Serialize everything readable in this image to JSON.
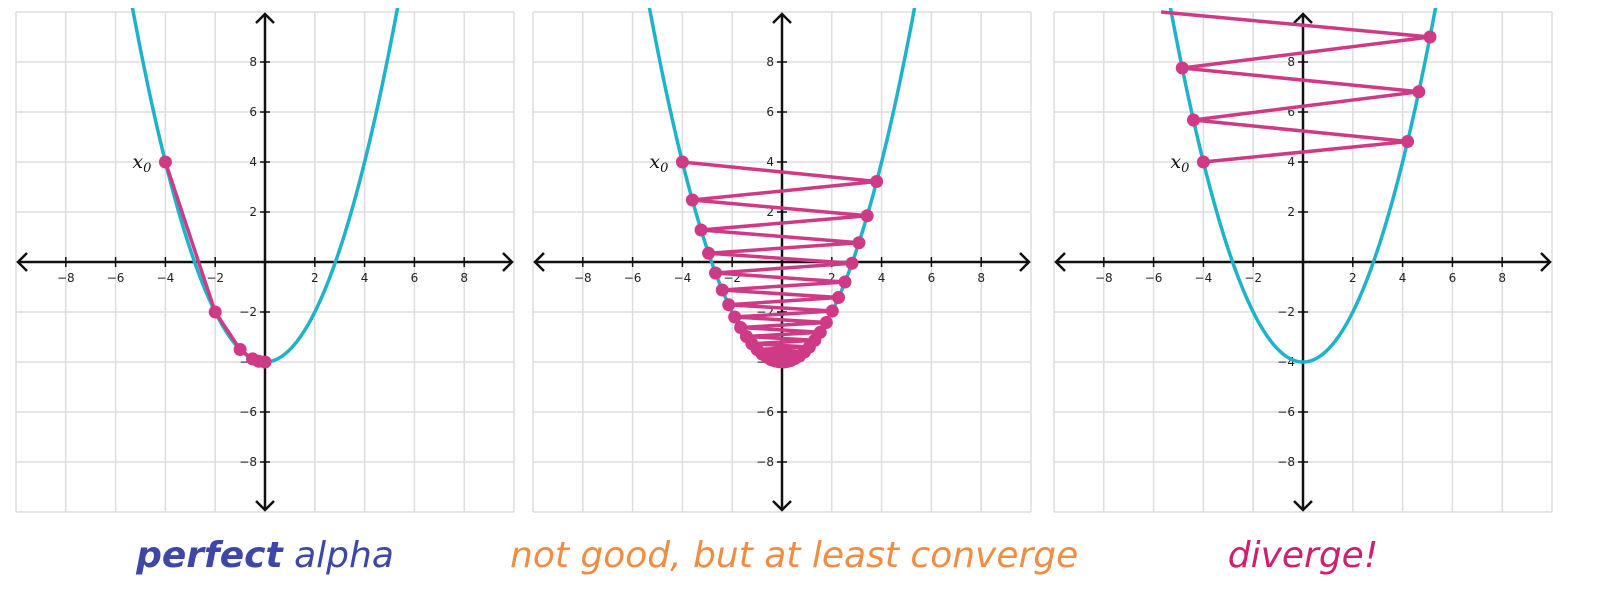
{
  "colors": {
    "curve": "#1fb3cb",
    "path": "#cf3a86",
    "grid": "#dddddd",
    "axis": "#111111"
  },
  "chart_data": [
    {
      "type": "line",
      "caption_bold": "perfect",
      "caption_rest": " alpha",
      "caption_color": "#3d47a8",
      "xlim": [
        -10,
        10
      ],
      "ylim": [
        -10,
        10
      ],
      "xticks": [
        -8,
        -6,
        -4,
        -2,
        2,
        4,
        6,
        8
      ],
      "yticks": [
        8,
        6,
        4,
        2,
        -2,
        -4,
        -6,
        -8
      ],
      "start_label": "x",
      "start_label_sub": "0",
      "curve": "y = x^2/2 - 4",
      "series": [
        {
          "x": [
            -4,
            -2,
            -1,
            -0.5,
            -0.25,
            0
          ],
          "y": [
            4,
            -2,
            -3.5,
            -3.875,
            -3.97,
            -4
          ]
        }
      ]
    },
    {
      "type": "line",
      "caption_bold": "",
      "caption_rest": "not good, but at least converge",
      "caption_color": "#f08d42",
      "xlim": [
        -10,
        10
      ],
      "ylim": [
        -10,
        10
      ],
      "xticks": [
        -8,
        -6,
        -4,
        -2,
        2,
        4,
        6,
        8
      ],
      "yticks": [
        8,
        6,
        4,
        2,
        -2,
        -4,
        -6,
        -8
      ],
      "start_label": "x",
      "start_label_sub": "0",
      "curve": "y = x^2/2 - 4",
      "series": [
        {
          "x": [
            -4,
            3.8,
            -3.6,
            3.42,
            -3.25,
            3.09,
            -2.95,
            2.81,
            -2.67,
            2.53,
            -2.4,
            2.27,
            -2.14,
            2.02,
            -1.9,
            1.78,
            -1.66,
            1.54,
            -1.43,
            1.32,
            -1.21,
            1.1,
            -1.0,
            0.9,
            -0.8,
            0.7,
            -0.61,
            0.52,
            -0.43,
            0.35,
            -0.27,
            0.2,
            -0.13,
            0.07
          ],
          "y": [
            4,
            3.22,
            2.48,
            1.85,
            1.28,
            0.77,
            0.35,
            -0.05,
            -0.44,
            -0.8,
            -1.12,
            -1.42,
            -1.71,
            -1.96,
            -2.2,
            -2.42,
            -2.62,
            -2.81,
            -2.98,
            -3.13,
            -3.27,
            -3.4,
            -3.5,
            -3.6,
            -3.68,
            -3.76,
            -3.81,
            -3.86,
            -3.91,
            -3.94,
            -3.96,
            -3.98,
            -3.99,
            -4.0
          ]
        }
      ]
    },
    {
      "type": "line",
      "caption_bold": "",
      "caption_rest": "diverge!",
      "caption_color": "#d01f6e",
      "xlim": [
        -10,
        10
      ],
      "ylim": [
        -10,
        10
      ],
      "xticks": [
        -8,
        -6,
        -4,
        -2,
        2,
        4,
        6,
        8
      ],
      "yticks": [
        8,
        6,
        4,
        2,
        -2,
        -4,
        -6,
        -8
      ],
      "start_label": "x",
      "start_label_sub": "0",
      "curve": "y = x^2/2 - 4",
      "series": [
        {
          "x": [
            -4,
            4.2,
            -4.4,
            4.65,
            -4.85,
            5.1,
            -5.7
          ],
          "y": [
            4,
            4.82,
            5.68,
            6.81,
            7.76,
            9.0,
            10.0
          ]
        }
      ]
    }
  ]
}
